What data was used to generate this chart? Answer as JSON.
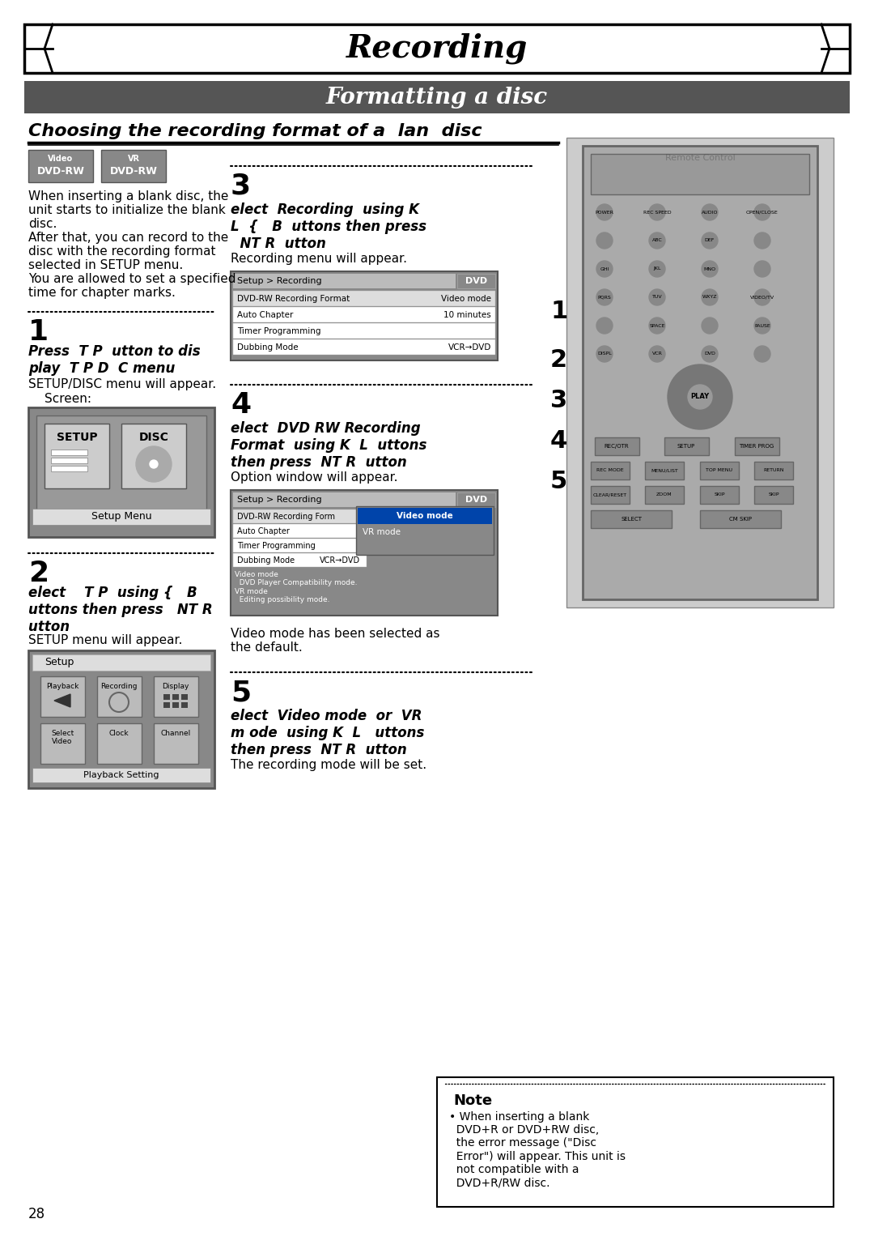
{
  "title": "Recording",
  "subtitle": "Formatting a disc",
  "section_title": "Choosing the recording format of a  lan  disc",
  "background_color": "#ffffff",
  "header_bg": "#666666",
  "header_text_color": "#ffffff",
  "title_border_color": "#000000",
  "left_col_intro": [
    "When inserting a blank disc, the",
    "unit starts to initialize the blank",
    "disc.",
    "After that, you can record to the",
    "disc with the recording format",
    "selected in SETUP menu.",
    "You are allowed to set a specified",
    "time for chapter marks."
  ],
  "step1_bold": "Press  T P  utton to dis\nplay  T P D  C menu",
  "step1_normal": "SETUP/DISC menu will appear.\n    Screen:",
  "step2_bold": "elect    T P  using {   B\nuttons then press   NT R\nutton",
  "step2_normal": "SETUP menu will appear.",
  "step3_bold": "elect  Recording  using K\nL  {   B  uttons then press\n  NT R  utton",
  "step3_normal": "Recording menu will appear.",
  "step4_bold": "elect  DVD RW Recording\nFormat  using K  L  uttons\nthen press  NT R  utton",
  "step4_normal": "Option window will appear.",
  "step5_bold": "elect  Video mode  or  VR\nm ode  using K  L   uttons\nthen press  NT R  utton",
  "step5_normal": "The recording mode will be set.",
  "video_mode_text": "Video mode has been selected as\nthe default.",
  "note_title": "Note",
  "note_text": "• When inserting a blank\n  DVD+R or DVD+RW disc,\n  the error message (\"Disc\n  Error\") will appear. This unit is\n  not compatible with a\n  DVD+R/RW disc.",
  "page_number": "28",
  "dotted_color": "#000000",
  "step_number_size": 28,
  "body_fontsize": 11,
  "bold_fontsize": 12
}
